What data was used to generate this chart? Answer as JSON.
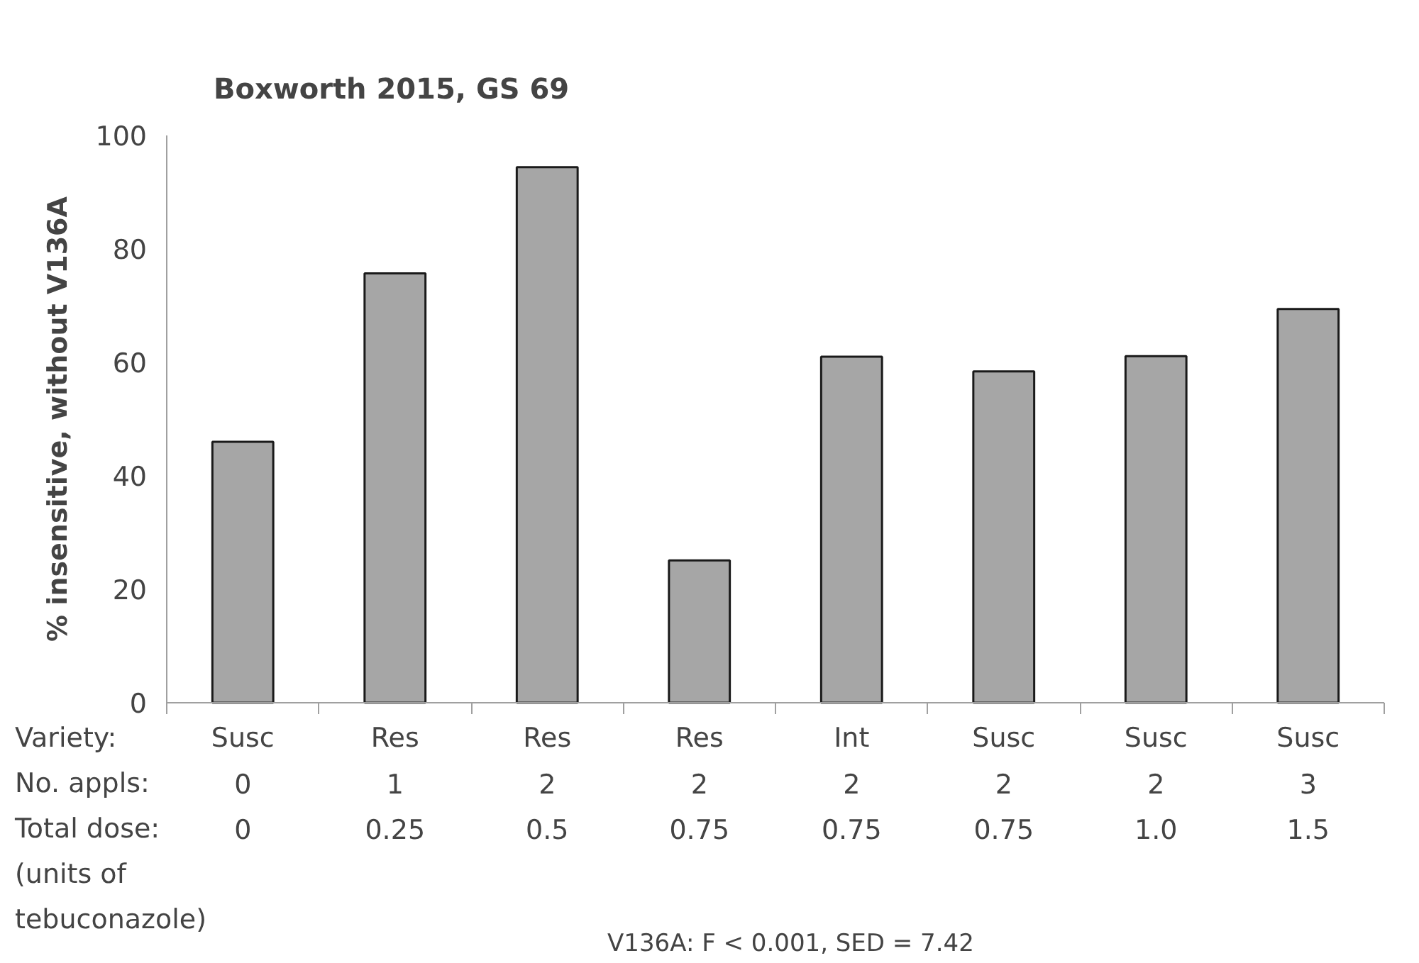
{
  "chart_data": {
    "type": "bar",
    "title": "Boxworth 2015, GS 69",
    "ylabel": "% insensitive, without V136A",
    "categories": [
      "Susc\n0\n0",
      "Res\n1\n0.25",
      "Res\n2\n0.5",
      "Res\n2\n0.75",
      "Int\n2\n0.75",
      "Susc\n2\n0.75",
      "Susc\n2\n1.0",
      "Susc\n3\n1.5"
    ],
    "values": [
      46.0,
      75.7,
      94.4,
      25.1,
      61.0,
      58.4,
      61.1,
      69.4
    ],
    "color": "#a6a6a6",
    "ylim": [
      0,
      100
    ],
    "yticks": [
      0,
      20,
      40,
      60,
      80,
      100
    ],
    "grid": false,
    "annotations": [
      "Variety:",
      "No. appls:",
      "Total dose:",
      "(units of tebuconazole)",
      "V136A: F < 0.001, SED = 7.42"
    ]
  }
}
